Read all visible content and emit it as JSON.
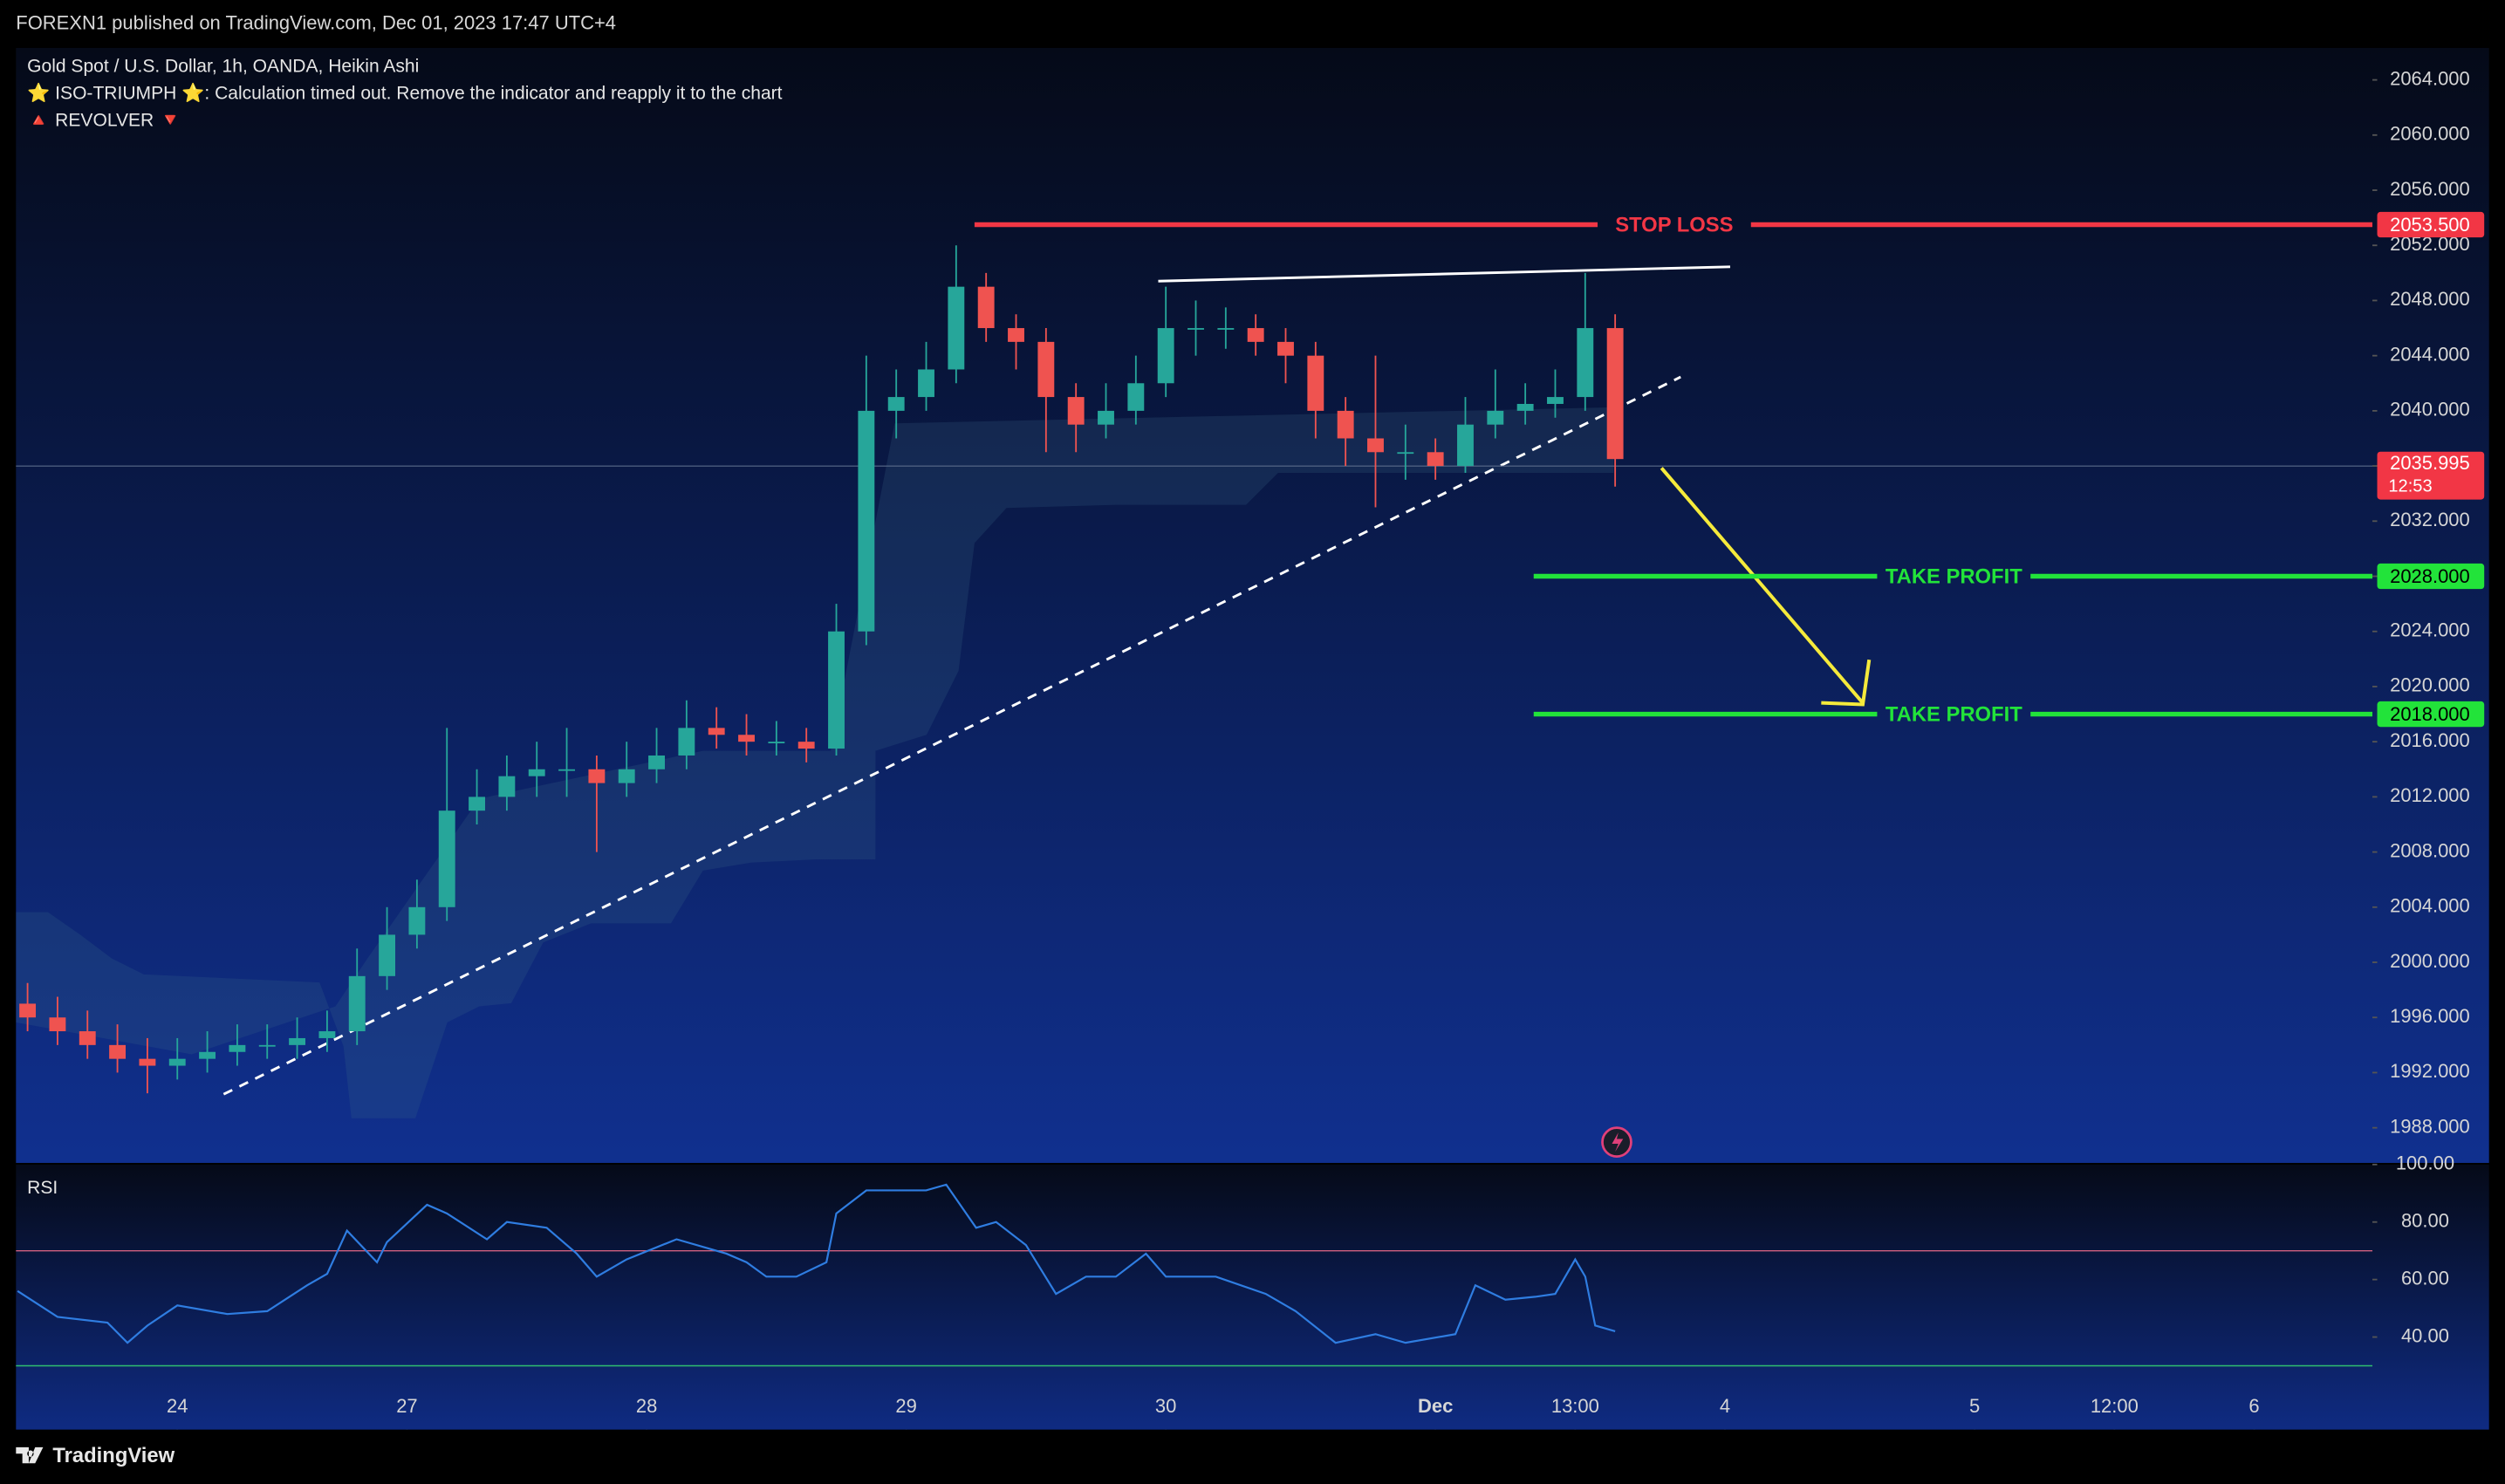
{
  "header": {
    "publisher": "FOREXN1 published on TradingView.com, Dec 01, 2023 17:47 UTC+4"
  },
  "footer": {
    "brand": "TradingView"
  },
  "chart_data": {
    "type": "candlestick",
    "legend": [
      "Gold Spot / U.S. Dollar, 1h, OANDA, Heikin Ashi",
      "⭐ ISO-TRIUMPH ⭐: Calculation timed out. Remove the indicator and reapply it to the chart",
      "🔺 REVOLVER 🔻"
    ],
    "up_color": "#26a69a",
    "down_color": "#ef5350",
    "xlim": [
      -16.16,
      219.84
    ],
    "xticks": [
      {
        "value": 0,
        "label": "24"
      },
      {
        "value": 23,
        "label": "27"
      },
      {
        "value": 47,
        "label": "28"
      },
      {
        "value": 73,
        "label": "29"
      },
      {
        "value": 99,
        "label": "30"
      },
      {
        "value": 126,
        "label": "Dec"
      },
      {
        "value": 140,
        "label": "13:00"
      },
      {
        "value": 155,
        "label": "4"
      },
      {
        "value": 180,
        "label": "5"
      },
      {
        "value": 194,
        "label": "12:00"
      },
      {
        "value": 208,
        "label": "6"
      }
    ],
    "ylim": [
      1985.45,
      2066.32
    ],
    "yticks": [
      {
        "value": 2064,
        "label": "2064.000"
      },
      {
        "value": 2060,
        "label": "2060.000"
      },
      {
        "value": 2056,
        "label": "2056.000"
      },
      {
        "value": 2052,
        "label": "2052.000"
      },
      {
        "value": 2048,
        "label": "2048.000"
      },
      {
        "value": 2044,
        "label": "2044.000"
      },
      {
        "value": 2040,
        "label": "2040.000"
      },
      {
        "value": 2036,
        "label": "2036.000"
      },
      {
        "value": 2032,
        "label": "2032.000"
      },
      {
        "value": 2028,
        "label": "2028.000"
      },
      {
        "value": 2024,
        "label": "2024.000"
      },
      {
        "value": 2020,
        "label": "2020.000"
      },
      {
        "value": 2016,
        "label": "2016.000"
      },
      {
        "value": 2012,
        "label": "2012.000"
      },
      {
        "value": 2008,
        "label": "2008.000"
      },
      {
        "value": 2004,
        "label": "2004.000"
      },
      {
        "value": 2000,
        "label": "2000.000"
      },
      {
        "value": 1996,
        "label": "1996.000"
      },
      {
        "value": 1992,
        "label": "1992.000"
      },
      {
        "value": 1988,
        "label": "1988.000"
      }
    ],
    "candles": {
      "x": [
        -15,
        -12,
        -9,
        -6,
        -3,
        0,
        3,
        6,
        9,
        12,
        15,
        18,
        21,
        24,
        27,
        30,
        33,
        36,
        39,
        42,
        45,
        48,
        51,
        54,
        57,
        60,
        63,
        66,
        69,
        72,
        75,
        78,
        81,
        84,
        87,
        90,
        93,
        96,
        99,
        102,
        105,
        108,
        111,
        114,
        117,
        120,
        123,
        126,
        129,
        132,
        135,
        138,
        141,
        144
      ],
      "open": [
        1997,
        1996,
        1995,
        1994,
        1993,
        1992.5,
        1993,
        1993.5,
        1994,
        1994,
        1994.5,
        1995,
        1999,
        2002,
        2004,
        2011,
        2012,
        2013.5,
        2014,
        2014,
        2013,
        2014,
        2015,
        2017,
        2016.5,
        2016,
        2016,
        2015.5,
        2024,
        2040,
        2041,
        2043,
        2049,
        2046,
        2045,
        2041,
        2039,
        2040,
        2042,
        2046,
        2046,
        2046,
        2045,
        2044,
        2040,
        2038,
        2037,
        2037,
        2036,
        2039,
        2040,
        2040.5,
        2041,
        2046
      ],
      "high": [
        1998.5,
        1997.5,
        1996.5,
        1995.5,
        1994.5,
        1994.5,
        1995,
        1995.5,
        1995.5,
        1996,
        1996.5,
        2001,
        2004,
        2006,
        2017,
        2014,
        2015,
        2016,
        2017,
        2015,
        2016,
        2017,
        2019,
        2018.5,
        2018,
        2017.5,
        2017,
        2026,
        2044,
        2043,
        2045,
        2052,
        2050,
        2047,
        2046,
        2042,
        2042,
        2044,
        2049,
        2048,
        2047.5,
        2047,
        2046,
        2045,
        2041,
        2044,
        2039,
        2038,
        2041,
        2043,
        2042,
        2043,
        2050,
        2047
      ],
      "low": [
        1995,
        1994,
        1993,
        1992,
        1990.5,
        1991.5,
        1992,
        1992.5,
        1993,
        1993,
        1993.5,
        1994,
        1998,
        2001,
        2003,
        2010,
        2011,
        2012,
        2012,
        2008,
        2012,
        2013,
        2014,
        2015.5,
        2015,
        2015,
        2014.5,
        2015,
        2023,
        2038,
        2040,
        2042,
        2045,
        2043,
        2037,
        2037,
        2038,
        2039,
        2041,
        2044,
        2044.5,
        2044,
        2042,
        2038,
        2036,
        2033,
        2035,
        2035,
        2035.5,
        2038,
        2039,
        2039.5,
        2040,
        2034.5
      ],
      "close": [
        1996,
        1995,
        1994,
        1993,
        1992.5,
        1993,
        1993.5,
        1994,
        1994,
        1994.5,
        1995,
        1999,
        2002,
        2004,
        2011,
        2012,
        2013.5,
        2014,
        2014,
        2013,
        2014,
        2015,
        2017,
        2016.5,
        2016,
        2016,
        2015.5,
        2024,
        2040,
        2041,
        2043,
        2049,
        2046,
        2045,
        2041,
        2039,
        2040,
        2042,
        2046,
        2046,
        2046,
        2045,
        2044,
        2040,
        2038,
        2037,
        2037,
        2036,
        2039,
        2040,
        2040.5,
        2041,
        2046,
        2036.5
      ]
    },
    "levels": [
      {
        "name": "STOP LOSS",
        "value": 2053.5,
        "label": "2053.500",
        "color": "#f23645"
      },
      {
        "name": "TAKE PROFIT",
        "value": 2028,
        "label": "2028.000",
        "color": "#22e33a"
      },
      {
        "name": "TAKE PROFIT",
        "value": 2018,
        "label": "2018.000",
        "color": "#22e33a"
      }
    ],
    "last_price": {
      "value": 2035.995,
      "label": "2035.995",
      "countdown": "12:53",
      "color": "#f23645"
    },
    "rsi": {
      "title": "RSI",
      "color": "#2f7de1",
      "x": [
        -16,
        -12,
        -7,
        -5,
        -3,
        0,
        5,
        9,
        13,
        15,
        17,
        20,
        21,
        25,
        27,
        31,
        33,
        37,
        40,
        42,
        45,
        50,
        55,
        57,
        59,
        62,
        65,
        66,
        69,
        75,
        77,
        80,
        82,
        85,
        88,
        91,
        94,
        97,
        99,
        104,
        109,
        112,
        116,
        120,
        123,
        128,
        130,
        133,
        136,
        138,
        140,
        141,
        142,
        144
      ],
      "values": [
        56,
        47,
        45,
        38,
        44,
        51,
        48,
        49,
        58,
        62,
        77,
        66,
        73,
        86,
        83,
        74,
        80,
        78,
        69,
        61,
        67,
        74,
        69,
        66,
        61,
        61,
        66,
        83,
        91,
        91,
        93,
        78,
        80,
        72,
        55,
        61,
        61,
        69,
        61,
        61,
        55,
        49,
        38,
        41,
        38,
        41,
        58,
        53,
        54,
        55,
        67,
        61,
        44,
        42
      ],
      "ylim": [
        7.78,
        100
      ],
      "yticks": [
        {
          "value": 100,
          "label": "100.00"
        },
        {
          "value": 80,
          "label": "80.00"
        },
        {
          "value": 60,
          "label": "60.00"
        },
        {
          "value": 40,
          "label": "40.00"
        }
      ],
      "bands": [
        70,
        30
      ]
    }
  }
}
